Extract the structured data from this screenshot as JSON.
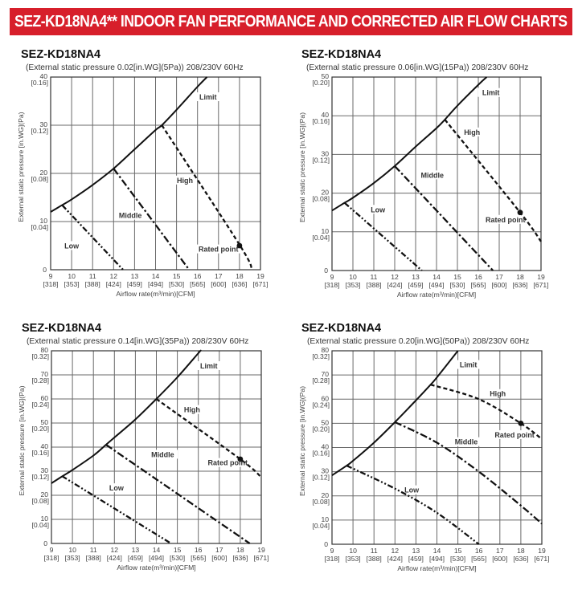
{
  "banner": {
    "title": "SEZ-KD18NA4** INDOOR FAN PERFORMANCE AND CORRECTED AIR FLOW CHARTS",
    "background": "#d71f2b",
    "text_color": "#ffffff"
  },
  "charts": [
    {
      "model": "SEZ-KD18NA4",
      "subtitle": "(External static pressure 0.02[in.WG](5Pa))  208/230V 60Hz"
    },
    {
      "model": "SEZ-KD18NA4",
      "subtitle": "(External static pressure 0.06[in.WG](15Pa))  208/230V 60Hz"
    },
    {
      "model": "SEZ-KD18NA4",
      "subtitle": "(External static pressure 0.14[in.WG](35Pa))  208/230V 60Hz"
    },
    {
      "model": "SEZ-KD18NA4",
      "subtitle": "(External static pressure 0.20[in.WG](50Pa))  208/230V 60Hz"
    }
  ],
  "chart_data": [
    {
      "type": "line",
      "title": "SEZ-KD18NA4",
      "subtitle": "(External static pressure 0.02[in.WG](5Pa)) 208/230V 60Hz",
      "xlabel": "Airflow rate(m³/min)[CFM]",
      "ylabel": "External static pressure  [in.WG](Pa)",
      "xlim": [
        9,
        19
      ],
      "ylim": [
        0,
        40
      ],
      "grid": true,
      "x_ticks": [
        9,
        10,
        11,
        12,
        13,
        14,
        15,
        16,
        17,
        18,
        19
      ],
      "x_ticks_cfm": [
        "[318]",
        "[353]",
        "[388]",
        "[424]",
        "[459]",
        "[494]",
        "[530]",
        "[565]",
        "[600]",
        "[636]",
        "[671]"
      ],
      "y_ticks": [
        0,
        10,
        20,
        30,
        40
      ],
      "y_ticks_inwg": [
        "",
        "[0.04]",
        "[0.08]",
        "[0.12]",
        "[0.16]"
      ],
      "series": [
        {
          "name": "Limit",
          "style": "solid",
          "points": [
            [
              9,
              12
            ],
            [
              9.5,
              13.3
            ],
            [
              10,
              14.6
            ],
            [
              11,
              17.6
            ],
            [
              12,
              21
            ],
            [
              13,
              25
            ],
            [
              14,
              29
            ],
            [
              14.3,
              30
            ],
            [
              15,
              33.2
            ],
            [
              16,
              38
            ],
            [
              16.45,
              40
            ]
          ]
        },
        {
          "name": "High",
          "style": "dashed",
          "points": [
            [
              14.3,
              30
            ],
            [
              18,
              5.2
            ],
            [
              18.6,
              0
            ]
          ]
        },
        {
          "name": "Middle",
          "style": "dash-dot",
          "points": [
            [
              12,
              21
            ],
            [
              15.6,
              0
            ]
          ]
        },
        {
          "name": "Low",
          "style": "dash-dot-dot",
          "points": [
            [
              9.55,
              13.4
            ],
            [
              12.45,
              0
            ]
          ]
        }
      ],
      "rated_point": [
        18,
        5
      ],
      "annotations": [
        {
          "text": "Limit",
          "x": 16.5,
          "y": 35.5
        },
        {
          "text": "High",
          "x": 15.4,
          "y": 18.2
        },
        {
          "text": "Middle",
          "x": 12.8,
          "y": 10.9
        },
        {
          "text": "Low",
          "x": 10.0,
          "y": 4.6
        },
        {
          "text": "Rated point",
          "x": 17.0,
          "y": 3.9
        }
      ]
    },
    {
      "type": "line",
      "title": "SEZ-KD18NA4",
      "subtitle": "(External static pressure 0.06[in.WG](15Pa)) 208/230V 60Hz",
      "xlabel": "Airflow rate(m³/min)[CFM]",
      "ylabel": "External static pressure  [in.WG](Pa)",
      "xlim": [
        9,
        19
      ],
      "ylim": [
        0,
        50
      ],
      "grid": true,
      "x_ticks": [
        9,
        10,
        11,
        12,
        13,
        14,
        15,
        16,
        17,
        18,
        19
      ],
      "x_ticks_cfm": [
        "[318]",
        "[353]",
        "[388]",
        "[424]",
        "[459]",
        "[494]",
        "[530]",
        "[565]",
        "[600]",
        "[636]",
        "[671]"
      ],
      "y_ticks": [
        0,
        10,
        20,
        30,
        40,
        50
      ],
      "y_ticks_inwg": [
        "",
        "[0.04]",
        "[0.08]",
        "[0.12]",
        "[0.16]",
        "[0.20]"
      ],
      "series": [
        {
          "name": "Limit",
          "style": "solid",
          "points": [
            [
              9,
              15.5
            ],
            [
              9.6,
              17.5
            ],
            [
              10,
              18.8
            ],
            [
              11,
              22.6
            ],
            [
              12,
              27
            ],
            [
              13,
              32
            ],
            [
              14,
              36.8
            ],
            [
              14.4,
              39
            ],
            [
              15,
              42.6
            ],
            [
              16,
              48
            ],
            [
              16.4,
              50
            ]
          ]
        },
        {
          "name": "High",
          "style": "dashed",
          "points": [
            [
              14.4,
              39
            ],
            [
              18,
              15
            ],
            [
              19,
              7.5
            ]
          ]
        },
        {
          "name": "Middle",
          "style": "dash-dot",
          "points": [
            [
              12,
              27
            ],
            [
              16.7,
              0
            ]
          ]
        },
        {
          "name": "Low",
          "style": "dash-dot-dot",
          "points": [
            [
              9.6,
              17.5
            ],
            [
              13.3,
              0
            ]
          ]
        }
      ],
      "rated_point": [
        18,
        15
      ],
      "annotations": [
        {
          "text": "Limit",
          "x": 16.6,
          "y": 45.5
        },
        {
          "text": "High",
          "x": 15.7,
          "y": 35.3
        },
        {
          "text": "Middle",
          "x": 13.8,
          "y": 24.2
        },
        {
          "text": "Low",
          "x": 11.2,
          "y": 15.3
        },
        {
          "text": "Rated point",
          "x": 17.3,
          "y": 12.7
        }
      ]
    },
    {
      "type": "line",
      "title": "SEZ-KD18NA4",
      "subtitle": "(External static pressure 0.14[in.WG](35Pa)) 208/230V 60Hz",
      "xlabel": "Airflow rate(m³/min)[CFM]",
      "ylabel": "External static pressure  [in.WG](Pa)",
      "xlim": [
        9,
        19
      ],
      "ylim": [
        0,
        80
      ],
      "grid": true,
      "x_ticks": [
        9,
        10,
        11,
        12,
        13,
        14,
        15,
        16,
        17,
        18,
        19
      ],
      "x_ticks_cfm": [
        "[318]",
        "[353]",
        "[388]",
        "[424]",
        "[459]",
        "[494]",
        "[530]",
        "[565]",
        "[600]",
        "[636]",
        "[671]"
      ],
      "y_ticks": [
        0,
        10,
        20,
        30,
        40,
        50,
        60,
        70,
        80
      ],
      "y_ticks_inwg": [
        "",
        "[0.04]",
        "[0.08]",
        "[0.12]",
        "[0.16]",
        "[0.20]",
        "[0.24]",
        "[0.28]",
        "[0.32]"
      ],
      "series": [
        {
          "name": "Limit",
          "style": "solid",
          "points": [
            [
              9,
              25
            ],
            [
              9.5,
              27.8
            ],
            [
              10,
              30.5
            ],
            [
              11,
              36.5
            ],
            [
              11.6,
              41
            ],
            [
              12,
              44
            ],
            [
              13,
              51.5
            ],
            [
              14,
              60
            ],
            [
              15,
              69
            ],
            [
              16,
              79
            ],
            [
              16.1,
              80
            ]
          ]
        },
        {
          "name": "High",
          "style": "dashed",
          "points": [
            [
              14,
              60
            ],
            [
              18,
              35
            ],
            [
              19,
              27.5
            ]
          ]
        },
        {
          "name": "Middle",
          "style": "dash-dot",
          "points": [
            [
              11.6,
              41
            ],
            [
              18.45,
              0
            ]
          ]
        },
        {
          "name": "Low",
          "style": "dash-dot-dot",
          "points": [
            [
              9.5,
              28
            ],
            [
              14.7,
              0
            ]
          ]
        }
      ],
      "rated_point": [
        18,
        35
      ],
      "annotations": [
        {
          "text": "Limit",
          "x": 16.5,
          "y": 73
        },
        {
          "text": "High",
          "x": 15.7,
          "y": 54.8
        },
        {
          "text": "Middle",
          "x": 14.3,
          "y": 36.2
        },
        {
          "text": "Low",
          "x": 12.1,
          "y": 22.3
        },
        {
          "text": "Rated point",
          "x": 17.4,
          "y": 32.8
        }
      ]
    },
    {
      "type": "line",
      "title": "SEZ-KD18NA4",
      "subtitle": "(External static pressure 0.20[in.WG](50Pa)) 208/230V 60Hz",
      "xlabel": "Airflow rate(m³/min)[CFM]",
      "ylabel": "External static pressure  [in.WG](Pa)",
      "xlim": [
        9,
        19
      ],
      "ylim": [
        0,
        80
      ],
      "grid": true,
      "x_ticks": [
        9,
        10,
        11,
        12,
        13,
        14,
        15,
        16,
        17,
        18,
        19
      ],
      "x_ticks_cfm": [
        "[318]",
        "[353]",
        "[388]",
        "[424]",
        "[459]",
        "[494]",
        "[530]",
        "[565]",
        "[600]",
        "[636]",
        "[671]"
      ],
      "y_ticks": [
        0,
        10,
        20,
        30,
        40,
        50,
        60,
        70,
        80
      ],
      "y_ticks_inwg": [
        "",
        "[0.04]",
        "[0.08]",
        "[0.12]",
        "[0.16]",
        "[0.20]",
        "[0.24]",
        "[0.28]",
        "[0.32]"
      ],
      "series": [
        {
          "name": "Limit",
          "style": "solid",
          "points": [
            [
              9,
              28.5
            ],
            [
              9.7,
              32.5
            ],
            [
              10,
              34.5
            ],
            [
              11,
              42
            ],
            [
              12,
              50.5
            ],
            [
              13,
              59.5
            ],
            [
              13.7,
              66
            ],
            [
              14,
              69
            ],
            [
              15,
              80
            ]
          ]
        },
        {
          "name": "High",
          "style": "dashed",
          "points": [
            [
              13.7,
              66
            ],
            [
              16,
              60
            ],
            [
              18,
              50
            ],
            [
              19,
              43.5
            ]
          ]
        },
        {
          "name": "Middle",
          "style": "dash-dot",
          "points": [
            [
              12,
              50.5
            ],
            [
              14,
              42
            ],
            [
              16,
              30
            ],
            [
              18,
              16
            ],
            [
              19,
              8.5
            ]
          ]
        },
        {
          "name": "Low",
          "style": "dash-dot-dot",
          "points": [
            [
              9.7,
              32.5
            ],
            [
              12,
              23
            ],
            [
              14,
              13
            ],
            [
              16,
              0
            ]
          ]
        }
      ],
      "rated_point": [
        18,
        50
      ],
      "annotations": [
        {
          "text": "Limit",
          "x": 15.5,
          "y": 73.5
        },
        {
          "text": "High",
          "x": 16.9,
          "y": 61.5
        },
        {
          "text": "Middle",
          "x": 15.4,
          "y": 41.6
        },
        {
          "text": "Low",
          "x": 12.8,
          "y": 21.7
        },
        {
          "text": "Rated point",
          "x": 17.7,
          "y": 44.5
        }
      ]
    }
  ]
}
